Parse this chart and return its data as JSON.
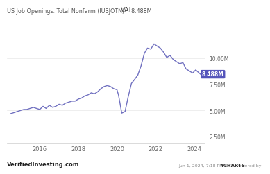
{
  "title": "VAL",
  "subtitle": "US Job Openings: Total Nonfarm (IUSJOTN)",
  "val_label": "8.488M",
  "line_color": "#7070c0",
  "bg_color": "#ffffff",
  "ylabel_right": [
    "2.50M",
    "5.00M",
    "7.50M",
    "10.00M"
  ],
  "yticks_right": [
    2500000,
    5000000,
    7500000,
    10000000
  ],
  "ylim": [
    1800000,
    12200000
  ],
  "xlim_start": 2014.3,
  "xlim_end": 2024.55,
  "xticks": [
    2016,
    2018,
    2020,
    2022,
    2024
  ],
  "footer_left": "VerifiedInvesting.com",
  "footer_right_plain": "Jun 1, 2024, 7:18 PM EDT  Powered by ",
  "footer_ycharts": "YCHARTS",
  "annotation_value": "8.488M",
  "annotation_color": "#5555bb",
  "data_x": [
    2014.5,
    2014.67,
    2014.83,
    2015.0,
    2015.17,
    2015.33,
    2015.5,
    2015.67,
    2015.83,
    2016.0,
    2016.17,
    2016.33,
    2016.5,
    2016.67,
    2016.83,
    2017.0,
    2017.17,
    2017.33,
    2017.5,
    2017.67,
    2017.83,
    2018.0,
    2018.17,
    2018.33,
    2018.5,
    2018.67,
    2018.83,
    2019.0,
    2019.17,
    2019.33,
    2019.5,
    2019.67,
    2019.83,
    2020.0,
    2020.08,
    2020.25,
    2020.42,
    2020.58,
    2020.75,
    2020.92,
    2021.08,
    2021.25,
    2021.42,
    2021.58,
    2021.75,
    2021.92,
    2022.08,
    2022.25,
    2022.42,
    2022.58,
    2022.75,
    2022.92,
    2023.08,
    2023.25,
    2023.42,
    2023.58,
    2023.75,
    2023.92,
    2024.08,
    2024.33
  ],
  "data_y": [
    4700000,
    4800000,
    4900000,
    5000000,
    5100000,
    5100000,
    5200000,
    5300000,
    5200000,
    5100000,
    5400000,
    5200000,
    5500000,
    5300000,
    5400000,
    5600000,
    5500000,
    5700000,
    5800000,
    5900000,
    5900000,
    6100000,
    6200000,
    6400000,
    6500000,
    6700000,
    6600000,
    6800000,
    7100000,
    7300000,
    7400000,
    7300000,
    7100000,
    7000000,
    6500000,
    4750000,
    4900000,
    6300000,
    7600000,
    8000000,
    8400000,
    9300000,
    10500000,
    11000000,
    10900000,
    11400000,
    11200000,
    11000000,
    10600000,
    10100000,
    10300000,
    9900000,
    9700000,
    9500000,
    9600000,
    9000000,
    8800000,
    8600000,
    8900000,
    8488000
  ]
}
